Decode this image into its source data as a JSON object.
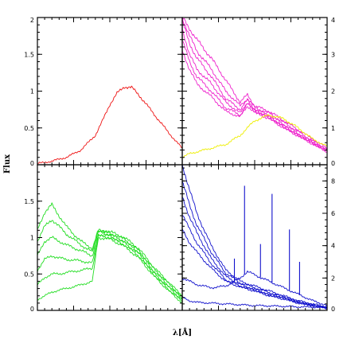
{
  "chart_data": {
    "type": "line",
    "ylabel": "Flux",
    "xlabel": "λ[Å]",
    "grid": false,
    "panels": [
      {
        "id": "top-left",
        "ylim": [
          0,
          2
        ],
        "yticks": [
          0,
          0.5,
          1,
          1.5,
          2
        ],
        "ytick_labels": [
          "0",
          "0.5",
          "1",
          "1.5",
          "2"
        ],
        "yaxis_side": "left",
        "color": "#ee1111",
        "series": [
          {
            "x": [
              0.0,
              0.05,
              0.1,
              0.2,
              0.3,
              0.4,
              0.45,
              0.5,
              0.55,
              0.6,
              0.65,
              0.7,
              0.8,
              0.9,
              1.0
            ],
            "y": [
              0.02,
              0.03,
              0.05,
              0.1,
              0.2,
              0.4,
              0.6,
              0.82,
              0.97,
              1.06,
              1.05,
              0.95,
              0.7,
              0.45,
              0.22
            ]
          }
        ]
      },
      {
        "id": "top-right",
        "ylim": [
          0,
          4
        ],
        "yticks": [
          0,
          1,
          2,
          3,
          4
        ],
        "ytick_labels": [
          "0",
          "1",
          "2",
          "3",
          "4"
        ],
        "yaxis_side": "right",
        "colors": [
          "#ee22cc",
          "#eeee00"
        ],
        "series": [
          {
            "x": [
              0.0,
              0.05,
              0.1,
              0.2,
              0.3,
              0.4,
              0.45,
              0.5,
              0.6,
              0.7,
              0.8,
              0.9,
              1.0
            ],
            "y": [
              4.0,
              3.7,
              3.4,
              2.9,
              2.3,
              1.7,
              1.9,
              1.6,
              1.45,
              1.2,
              0.95,
              0.7,
              0.45
            ]
          },
          {
            "x": [
              0.0,
              0.05,
              0.1,
              0.2,
              0.3,
              0.4,
              0.45,
              0.5,
              0.6,
              0.7,
              0.8,
              0.9,
              1.0
            ],
            "y": [
              4.0,
              3.5,
              3.1,
              2.6,
              2.0,
              1.6,
              1.8,
              1.55,
              1.4,
              1.15,
              0.9,
              0.65,
              0.42
            ]
          },
          {
            "x": [
              0.0,
              0.05,
              0.1,
              0.2,
              0.3,
              0.4,
              0.45,
              0.5,
              0.6,
              0.7,
              0.8,
              0.9,
              1.0
            ],
            "y": [
              3.9,
              3.3,
              2.9,
              2.4,
              1.8,
              1.5,
              1.75,
              1.5,
              1.35,
              1.1,
              0.85,
              0.62,
              0.4
            ]
          },
          {
            "x": [
              0.0,
              0.05,
              0.1,
              0.2,
              0.3,
              0.4,
              0.45,
              0.5,
              0.6,
              0.7,
              0.8,
              0.9,
              1.0
            ],
            "y": [
              3.7,
              3.0,
              2.6,
              2.2,
              1.7,
              1.4,
              1.7,
              1.48,
              1.3,
              1.05,
              0.82,
              0.6,
              0.38
            ]
          },
          {
            "x": [
              0.0,
              0.05,
              0.1,
              0.2,
              0.3,
              0.4,
              0.45,
              0.5,
              0.6,
              0.7,
              0.8,
              0.9,
              1.0
            ],
            "y": [
              3.4,
              2.8,
              2.4,
              2.0,
              1.55,
              1.35,
              1.65,
              1.45,
              1.28,
              1.03,
              0.8,
              0.58,
              0.36
            ]
          },
          {
            "x": [
              0.0,
              0.05,
              0.1,
              0.2,
              0.3,
              0.4,
              0.45,
              0.5,
              0.6,
              0.7,
              0.8,
              0.9,
              1.0
            ],
            "y": [
              3.1,
              2.6,
              2.2,
              1.85,
              1.45,
              1.3,
              1.6,
              1.42,
              1.25,
              1.0,
              0.78,
              0.56,
              0.35
            ]
          },
          {
            "x": [
              0.0,
              0.05,
              0.1,
              0.2,
              0.3,
              0.4,
              0.5,
              0.6,
              0.7,
              0.8,
              0.9,
              1.0
            ],
            "y": [
              0.2,
              0.3,
              0.35,
              0.45,
              0.55,
              0.8,
              1.2,
              1.35,
              1.25,
              1.0,
              0.7,
              0.5
            ]
          }
        ]
      },
      {
        "id": "bottom-left",
        "ylim": [
          0,
          2
        ],
        "yticks": [
          0,
          0.5,
          1,
          1.5
        ],
        "ytick_labels": [
          "0",
          "0.5",
          "1",
          "1.5"
        ],
        "yaxis_side": "left",
        "color": "#22dd22",
        "series": [
          {
            "x": [
              0.0,
              0.05,
              0.1,
              0.15,
              0.2,
              0.3,
              0.38,
              0.42,
              0.5,
              0.6,
              0.7,
              0.8,
              0.9,
              1.0
            ],
            "y": [
              1.1,
              1.35,
              1.45,
              1.3,
              1.15,
              0.95,
              0.85,
              1.1,
              1.08,
              1.0,
              0.85,
              0.6,
              0.4,
              0.2
            ]
          },
          {
            "x": [
              0.0,
              0.05,
              0.1,
              0.15,
              0.2,
              0.3,
              0.38,
              0.42,
              0.5,
              0.6,
              0.7,
              0.8,
              0.9,
              1.0
            ],
            "y": [
              0.95,
              1.15,
              1.25,
              1.15,
              1.05,
              0.9,
              0.8,
              1.1,
              1.06,
              0.98,
              0.82,
              0.58,
              0.38,
              0.18
            ]
          },
          {
            "x": [
              0.0,
              0.05,
              0.1,
              0.15,
              0.2,
              0.3,
              0.38,
              0.42,
              0.5,
              0.6,
              0.7,
              0.8,
              0.9,
              1.0
            ],
            "y": [
              0.75,
              0.95,
              1.0,
              0.95,
              0.9,
              0.82,
              0.75,
              1.08,
              1.04,
              0.95,
              0.8,
              0.55,
              0.35,
              0.16
            ]
          },
          {
            "x": [
              0.0,
              0.05,
              0.1,
              0.15,
              0.2,
              0.3,
              0.38,
              0.42,
              0.5,
              0.6,
              0.7,
              0.8,
              0.9,
              1.0
            ],
            "y": [
              0.55,
              0.7,
              0.75,
              0.72,
              0.7,
              0.68,
              0.65,
              1.05,
              1.02,
              0.93,
              0.78,
              0.52,
              0.33,
              0.14
            ]
          },
          {
            "x": [
              0.0,
              0.05,
              0.1,
              0.15,
              0.2,
              0.3,
              0.38,
              0.42,
              0.5,
              0.6,
              0.7,
              0.8,
              0.9,
              1.0
            ],
            "y": [
              0.35,
              0.45,
              0.5,
              0.5,
              0.52,
              0.55,
              0.58,
              1.02,
              1.0,
              0.9,
              0.75,
              0.5,
              0.3,
              0.12
            ]
          },
          {
            "x": [
              0.0,
              0.05,
              0.1,
              0.15,
              0.2,
              0.3,
              0.38,
              0.42,
              0.5,
              0.6,
              0.7,
              0.8,
              0.9,
              1.0
            ],
            "y": [
              0.15,
              0.2,
              0.25,
              0.28,
              0.3,
              0.35,
              0.4,
              1.0,
              0.98,
              0.88,
              0.72,
              0.48,
              0.28,
              0.1
            ]
          }
        ]
      },
      {
        "id": "bottom-right",
        "ylim": [
          0,
          9
        ],
        "yticks": [
          0,
          2,
          4,
          6,
          8
        ],
        "ytick_labels": [
          "0",
          "2",
          "4",
          "6",
          "8"
        ],
        "yaxis_side": "right",
        "color": "#1111cc",
        "series": [
          {
            "x": [
              0.0,
              0.05,
              0.1,
              0.2,
              0.3,
              0.4,
              0.5,
              0.6,
              0.7,
              0.8,
              0.9,
              1.0
            ],
            "y": [
              9.0,
              7.5,
              6.0,
              4.0,
              2.5,
              1.8,
              1.5,
              1.2,
              0.9,
              0.6,
              0.4,
              0.2
            ]
          },
          {
            "x": [
              0.0,
              0.05,
              0.1,
              0.2,
              0.3,
              0.4,
              0.5,
              0.6,
              0.7,
              0.8,
              0.9,
              1.0
            ],
            "y": [
              8.0,
              6.5,
              5.3,
              3.6,
              2.3,
              1.7,
              1.4,
              1.1,
              0.85,
              0.55,
              0.35,
              0.18
            ]
          },
          {
            "x": [
              0.0,
              0.05,
              0.1,
              0.2,
              0.3,
              0.4,
              0.5,
              0.6,
              0.7,
              0.8,
              0.9,
              1.0
            ],
            "y": [
              7.0,
              5.8,
              4.8,
              3.2,
              2.1,
              1.6,
              1.3,
              1.0,
              0.8,
              0.5,
              0.32,
              0.15
            ]
          },
          {
            "x": [
              0.0,
              0.05,
              0.1,
              0.2,
              0.3,
              0.4,
              0.5,
              0.6,
              0.7,
              0.8,
              0.9,
              1.0
            ],
            "y": [
              6.0,
              5.0,
              4.2,
              2.9,
              1.9,
              1.5,
              1.25,
              0.95,
              0.75,
              0.48,
              0.3,
              0.14
            ]
          },
          {
            "x": [
              0.0,
              0.05,
              0.1,
              0.2,
              0.3,
              0.4,
              0.5,
              0.6,
              0.7,
              0.8,
              0.9,
              1.0
            ],
            "y": [
              5.0,
              4.2,
              3.6,
              2.6,
              1.8,
              1.45,
              1.2,
              0.9,
              0.7,
              0.45,
              0.28,
              0.12
            ]
          },
          {
            "x": [
              0.0,
              0.05,
              0.1,
              0.2,
              0.3,
              0.4,
              0.45,
              0.5,
              0.6,
              0.7,
              0.8,
              0.9,
              1.0
            ],
            "y": [
              2.0,
              1.8,
              1.6,
              1.4,
              1.5,
              2.0,
              2.4,
              2.2,
              1.8,
              1.4,
              1.0,
              0.6,
              0.3
            ]
          },
          {
            "x": [
              0.0,
              0.05,
              0.1,
              0.2,
              0.3,
              0.4,
              0.5,
              0.6,
              0.7,
              0.8,
              0.9,
              1.0
            ],
            "y": [
              0.8,
              0.6,
              0.5,
              0.45,
              0.4,
              0.35,
              0.3,
              0.28,
              0.25,
              0.22,
              0.2,
              0.18
            ]
          }
        ],
        "emission_lines": [
          {
            "x": 0.43,
            "peak": 7.7
          },
          {
            "x": 0.54,
            "peak": 4.1
          },
          {
            "x": 0.62,
            "peak": 7.2
          },
          {
            "x": 0.74,
            "peak": 5.0
          },
          {
            "x": 0.81,
            "peak": 3.0
          },
          {
            "x": 0.36,
            "peak": 3.2
          }
        ]
      }
    ]
  }
}
